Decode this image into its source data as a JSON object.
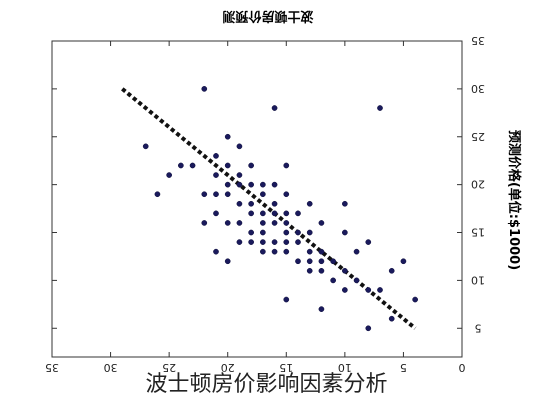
{
  "caption": "波士顿房价影响因素分析",
  "colors": {
    "point": "#1a1a5c",
    "trend": "#111111",
    "axis": "#333333",
    "text": "#222222"
  },
  "chart_data": {
    "type": "scatter",
    "orientation": "mirrored (image shown flipped horizontally)",
    "title": "波士顿房价预测",
    "xlabel": "",
    "ylabel": "预测价格(单位:$1000)",
    "xlim": [
      0,
      35
    ],
    "ylim": [
      2,
      35
    ],
    "x_ticks": [
      0,
      5,
      10,
      15,
      20,
      25,
      30,
      35
    ],
    "y_ticks": [
      5,
      10,
      15,
      20,
      25,
      30,
      35
    ],
    "grid": false,
    "legend": "none",
    "trend_line": {
      "style": "dotted",
      "x": [
        29,
        4
      ],
      "y": [
        30,
        5
      ]
    },
    "points": [
      [
        22,
        30
      ],
      [
        16,
        28
      ],
      [
        7,
        28
      ],
      [
        20,
        25
      ],
      [
        19,
        24
      ],
      [
        27,
        24
      ],
      [
        21,
        23
      ],
      [
        23,
        22
      ],
      [
        24,
        22
      ],
      [
        20,
        22
      ],
      [
        18,
        22
      ],
      [
        15,
        22
      ],
      [
        19,
        21
      ],
      [
        25,
        21
      ],
      [
        21,
        21
      ],
      [
        18,
        20
      ],
      [
        17,
        20
      ],
      [
        20,
        20
      ],
      [
        19,
        20
      ],
      [
        16,
        20
      ],
      [
        21,
        19
      ],
      [
        17,
        19
      ],
      [
        22,
        19
      ],
      [
        15,
        19
      ],
      [
        26,
        19
      ],
      [
        20,
        19
      ],
      [
        18,
        18
      ],
      [
        16,
        18
      ],
      [
        19,
        18
      ],
      [
        10,
        18
      ],
      [
        13,
        18
      ],
      [
        17,
        17
      ],
      [
        21,
        17
      ],
      [
        15,
        17
      ],
      [
        18,
        17
      ],
      [
        16,
        17
      ],
      [
        14,
        17
      ],
      [
        19,
        16
      ],
      [
        17,
        16
      ],
      [
        20,
        16
      ],
      [
        15,
        16
      ],
      [
        16,
        16
      ],
      [
        12,
        16
      ],
      [
        18,
        15
      ],
      [
        17,
        15
      ],
      [
        14,
        15
      ],
      [
        15,
        15
      ],
      [
        13,
        15
      ],
      [
        10,
        15
      ],
      [
        16,
        14
      ],
      [
        15,
        14
      ],
      [
        17,
        14
      ],
      [
        14,
        14
      ],
      [
        18,
        14
      ],
      [
        8,
        14
      ],
      [
        15,
        13
      ],
      [
        13,
        13
      ],
      [
        12,
        13
      ],
      [
        16,
        13
      ],
      [
        17,
        13
      ],
      [
        9,
        13
      ],
      [
        14,
        12
      ],
      [
        11,
        12
      ],
      [
        13,
        12
      ],
      [
        12,
        12
      ],
      [
        20,
        12
      ],
      [
        5,
        12
      ],
      [
        13,
        11
      ],
      [
        12,
        11
      ],
      [
        10,
        11
      ],
      [
        6,
        11
      ],
      [
        11,
        10
      ],
      [
        9,
        10
      ],
      [
        8,
        9
      ],
      [
        10,
        9
      ],
      [
        7,
        9
      ],
      [
        15,
        8
      ],
      [
        4,
        8
      ],
      [
        6,
        6
      ],
      [
        12,
        7
      ],
      [
        8,
        5
      ],
      [
        21,
        13
      ],
      [
        19,
        14
      ],
      [
        22,
        16
      ]
    ]
  }
}
